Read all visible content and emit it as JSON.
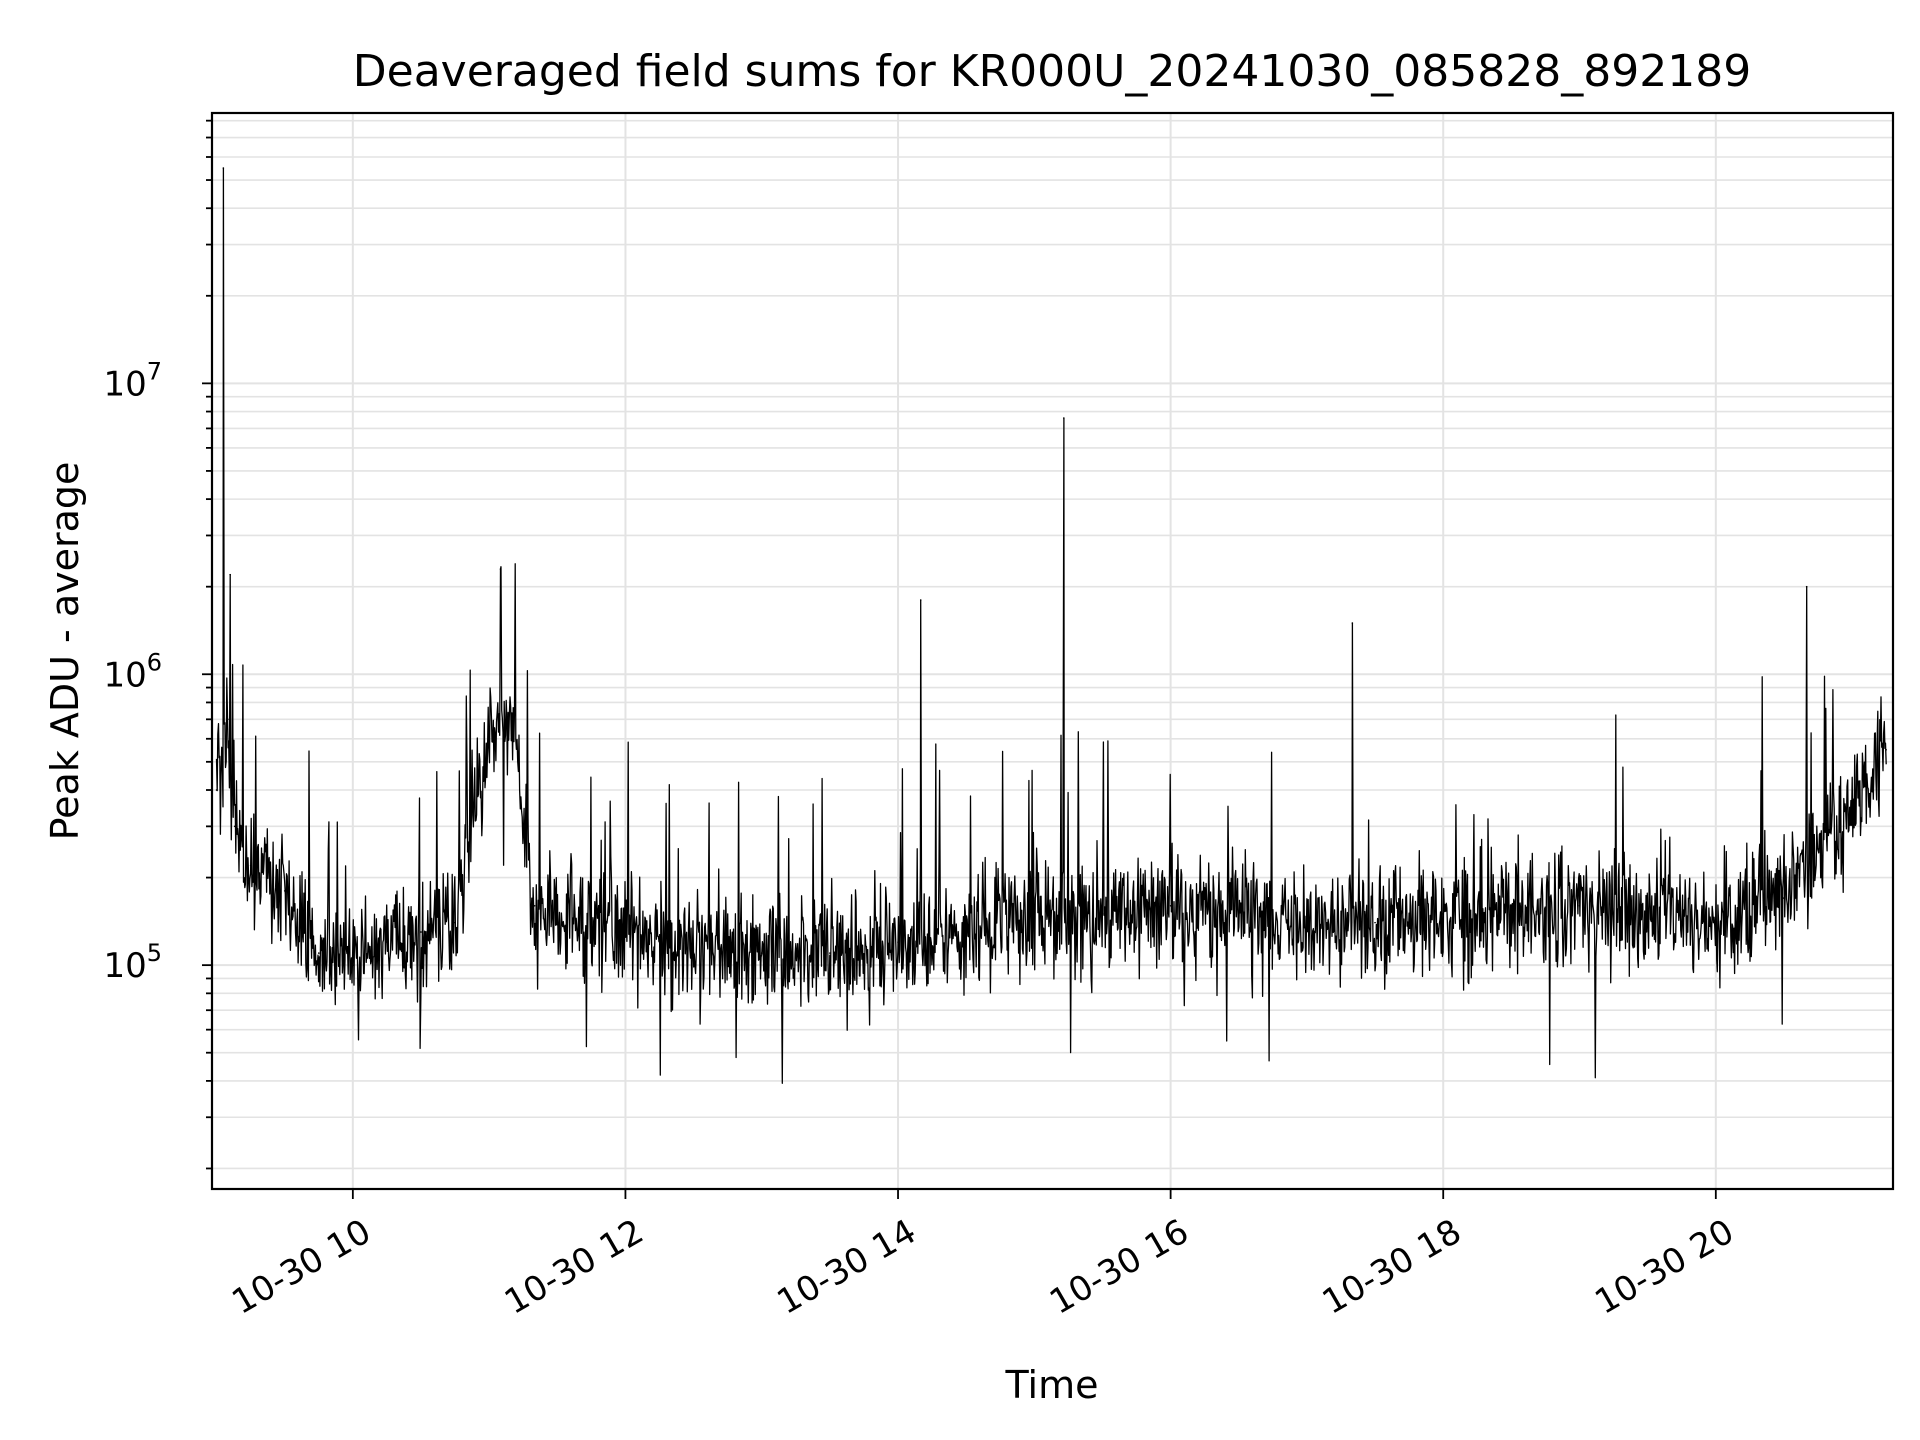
{
  "chart_data": {
    "type": "line",
    "title": "Deaveraged field sums for KR000U_20241030_085828_892189",
    "xlabel": "Time",
    "ylabel": "Peak ADU - average",
    "yscale": "log",
    "grid": true,
    "ylim": [
      17000,
      85000000
    ],
    "xlim": [
      "2024-10-30 08:58",
      "2024-10-30 21:18"
    ],
    "x_ticks": [
      {
        "t": "2024-10-30 10:00",
        "label": "10-30 10"
      },
      {
        "t": "2024-10-30 12:00",
        "label": "10-30 12"
      },
      {
        "t": "2024-10-30 14:00",
        "label": "10-30 14"
      },
      {
        "t": "2024-10-30 16:00",
        "label": "10-30 16"
      },
      {
        "t": "2024-10-30 18:00",
        "label": "10-30 18"
      },
      {
        "t": "2024-10-30 20:00",
        "label": "10-30 20"
      }
    ],
    "y_ticks": [
      {
        "value": 100000,
        "base": "10",
        "exp": "5"
      },
      {
        "value": 1000000,
        "base": "10",
        "exp": "6"
      },
      {
        "value": 10000000,
        "base": "10",
        "exp": "7"
      }
    ],
    "series": [
      {
        "color": "#000000",
        "x": [
          "2024-10-30 09:00",
          "2024-10-30 09:03",
          "2024-10-30 09:05",
          "2024-10-30 09:06",
          "2024-10-30 09:08",
          "2024-10-30 09:15",
          "2024-10-30 09:30",
          "2024-10-30 09:45",
          "2024-10-30 10:00",
          "2024-10-30 10:15",
          "2024-10-30 10:30",
          "2024-10-30 10:45",
          "2024-10-30 11:00",
          "2024-10-30 11:05",
          "2024-10-30 11:10",
          "2024-10-30 11:20",
          "2024-10-30 11:30",
          "2024-10-30 12:00",
          "2024-10-30 12:30",
          "2024-10-30 13:00",
          "2024-10-30 13:30",
          "2024-10-30 14:00",
          "2024-10-30 14:10",
          "2024-10-30 14:30",
          "2024-10-30 15:00",
          "2024-10-30 15:13",
          "2024-10-30 15:30",
          "2024-10-30 16:00",
          "2024-10-30 16:30",
          "2024-10-30 17:00",
          "2024-10-30 17:20",
          "2024-10-30 17:30",
          "2024-10-30 18:00",
          "2024-10-30 18:30",
          "2024-10-30 19:00",
          "2024-10-30 19:30",
          "2024-10-30 20:00",
          "2024-10-30 20:30",
          "2024-10-30 20:40",
          "2024-10-30 21:00",
          "2024-10-30 21:15"
        ],
        "y": [
          400000,
          55000000,
          700000,
          2200000,
          300000,
          220000,
          180000,
          110000,
          100000,
          120000,
          130000,
          140000,
          600000,
          2300000,
          700000,
          160000,
          140000,
          130000,
          110000,
          110000,
          110000,
          120000,
          1800000,
          130000,
          150000,
          7600000,
          150000,
          160000,
          150000,
          140000,
          1500000,
          140000,
          150000,
          150000,
          160000,
          150000,
          140000,
          170000,
          2000000,
          350000,
          550000
        ]
      }
    ]
  }
}
